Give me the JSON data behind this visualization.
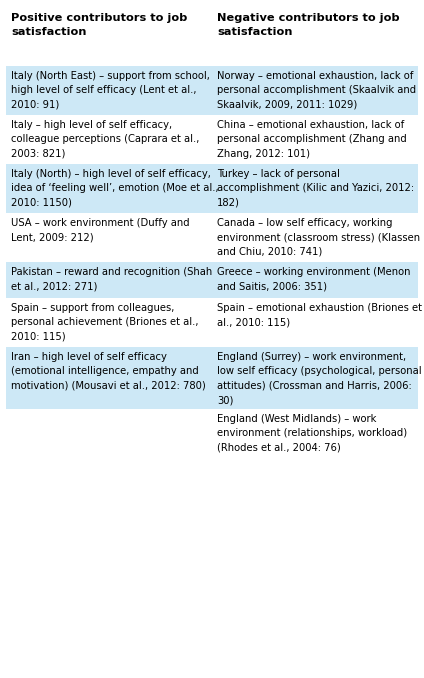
{
  "header_left": "Positive contributors to job\nsatisfaction",
  "header_right": "Negative contributors to job\nsatisfaction",
  "rows": [
    {
      "left": "Italy (North East) – support from school,\nhigh level of self efficacy (Lent et al.,\n2010: 91)",
      "right": "Norway – emotional exhaustion, lack of\npersonal accomplishment (Skaalvik and\nSkaalvik, 2009, 2011: 1029)",
      "shaded": true
    },
    {
      "left": "Italy – high level of self efficacy,\ncolleague perceptions (Caprara et al.,\n2003: 821)",
      "right": "China – emotional exhaustion, lack of\npersonal accomplishment (Zhang and\nZhang, 2012: 101)",
      "shaded": false
    },
    {
      "left": "Italy (North) – high level of self efficacy,\nidea of ‘feeling well’, emotion (Moe et al.,\n2010: 1150)",
      "right": "Turkey – lack of personal\naccomplishment (Kilic and Yazici, 2012:\n182)",
      "shaded": true
    },
    {
      "left": "USA – work environment (Duffy and\nLent, 2009: 212)",
      "right": "Canada – low self efficacy, working\nenvironment (classroom stress) (Klassen\nand Chiu, 2010: 741)",
      "shaded": false
    },
    {
      "left": "Pakistan – reward and recognition (Shah\net al., 2012: 271)",
      "right": "Greece – working environment (Menon\nand Saitis, 2006: 351)",
      "shaded": true
    },
    {
      "left": "Spain – support from colleagues,\npersonal achievement (Briones et al.,\n2010: 115)",
      "right": "Spain – emotional exhaustion (Briones et\nal., 2010: 115)",
      "shaded": false
    },
    {
      "left": "Iran – high level of self efficacy\n(emotional intelligence, empathy and\nmotivation) (Mousavi et al., 2012: 780)",
      "right": "England (Surrey) – work environment,\nlow self efficacy (psychological, personal\nattitudes) (Crossman and Harris, 2006:\n30)",
      "shaded": true
    },
    {
      "left": "",
      "right": "England (West Midlands) – work\nenvironment (relationships, workload)\n(Rhodes et al., 2004: 76)",
      "shaded": false
    }
  ],
  "shaded_color": "#cde8f6",
  "white_color": "#ffffff",
  "text_color": "#000000",
  "font_size": 7.2,
  "header_font_size": 8.2,
  "fig_width": 4.24,
  "fig_height": 6.78,
  "dpi": 100
}
